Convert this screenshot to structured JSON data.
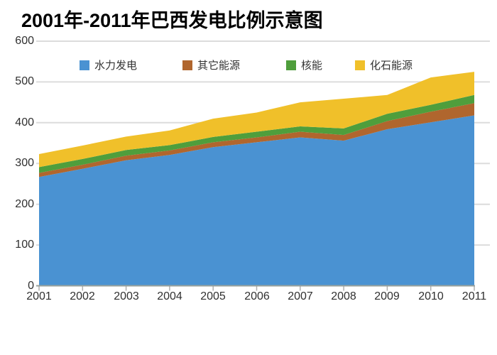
{
  "page": {
    "title": "2001年-2011年巴西发电比例示意图"
  },
  "axes": {
    "y_tick_labels": [
      "0",
      "100",
      "200",
      "300",
      "400",
      "500",
      "600"
    ],
    "x_tick_labels": [
      "2001",
      "2002",
      "2003",
      "2004",
      "2005",
      "2006",
      "2007",
      "2008",
      "2009",
      "2010",
      "2011"
    ]
  },
  "colors": {
    "hydro": "#4a92d2",
    "other": "#b0662e",
    "nuclear": "#4f9e3c",
    "fossil": "#f0c02a",
    "gridline": "#dcdcdc",
    "axis_line": "#9aa29c",
    "tick": "#b0b0b0",
    "text": "#303030"
  },
  "chart_data": {
    "type": "area",
    "stacked": true,
    "title": "2001年-2011年巴西发电比例示意图",
    "categories": [
      "2001",
      "2002",
      "2003",
      "2004",
      "2005",
      "2006",
      "2007",
      "2008",
      "2009",
      "2010",
      "2011"
    ],
    "series": [
      {
        "name": "水力发电",
        "color": "#4a92d2",
        "values": [
          267,
          287,
          308,
          321,
          340,
          352,
          364,
          356,
          384,
          401,
          418
        ]
      },
      {
        "name": "其它能源",
        "color": "#b0662e",
        "values": [
          10,
          10,
          11,
          11,
          12,
          12,
          14,
          14,
          20,
          26,
          30
        ]
      },
      {
        "name": "核能",
        "color": "#4f9e3c",
        "values": [
          14,
          14,
          14,
          13,
          13,
          14,
          13,
          16,
          18,
          17,
          20
        ]
      },
      {
        "name": "化石能源",
        "color": "#f0c02a",
        "values": [
          32,
          33,
          33,
          36,
          45,
          47,
          59,
          73,
          46,
          67,
          57
        ]
      }
    ],
    "totals": [
      323,
      344,
      366,
      381,
      410,
      425,
      450,
      459,
      468,
      511,
      525
    ],
    "xlabel": "",
    "ylabel": "",
    "ylim": [
      0,
      600
    ],
    "yticks": [
      0,
      100,
      200,
      300,
      400,
      500,
      600
    ],
    "grid": true,
    "legend_position": "top-inside"
  }
}
